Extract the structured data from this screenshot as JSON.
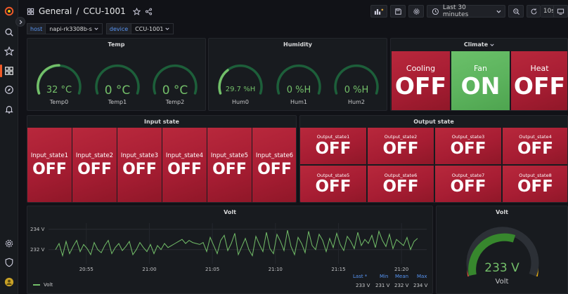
{
  "breadcrumb": {
    "folder": "General",
    "separator": "/",
    "dashboard": "CCU-1001"
  },
  "toolbar": {
    "time_range": "Last 30 minutes",
    "refresh_interval": "10s"
  },
  "variables": [
    {
      "label": "host",
      "value": "napi-rk3308b-s"
    },
    {
      "label": "device",
      "value": "CCU-1001"
    }
  ],
  "temp_panel": {
    "title": "Temp",
    "gauges": [
      {
        "value": "32 °C",
        "label": "Temp0"
      },
      {
        "value": "0 °C",
        "label": "Temp1"
      },
      {
        "value": "0 °C",
        "label": "Temp2"
      }
    ]
  },
  "humidity_panel": {
    "title": "Humidity",
    "gauges": [
      {
        "value": "29.7 %H",
        "label": "Hum0"
      },
      {
        "value": "0 %H",
        "label": "Hum1"
      },
      {
        "value": "0 %H",
        "label": "Hum2"
      }
    ]
  },
  "climate_panel": {
    "title": "Climate",
    "tiles": [
      {
        "label": "Cooling",
        "value": "OFF",
        "state": "off"
      },
      {
        "label": "Fan",
        "value": "ON",
        "state": "on"
      },
      {
        "label": "Heat",
        "value": "OFF",
        "state": "off"
      }
    ]
  },
  "input_panel": {
    "title": "Input state",
    "tiles": [
      {
        "label": "Input_state1",
        "value": "OFF"
      },
      {
        "label": "Input_state2",
        "value": "OFF"
      },
      {
        "label": "Input_state3",
        "value": "OFF"
      },
      {
        "label": "Input_state4",
        "value": "OFF"
      },
      {
        "label": "Input_state5",
        "value": "OFF"
      },
      {
        "label": "Input_state6",
        "value": "OFF"
      }
    ]
  },
  "output_panel": {
    "title": "Output state",
    "tiles": [
      {
        "label": "Output_state1",
        "value": "OFF"
      },
      {
        "label": "Output_state2",
        "value": "OFF"
      },
      {
        "label": "Output_state3",
        "value": "OFF"
      },
      {
        "label": "Output_state4",
        "value": "OFF"
      },
      {
        "label": "Output_state5",
        "value": "OFF"
      },
      {
        "label": "Output_state6",
        "value": "OFF"
      },
      {
        "label": "Output_state7",
        "value": "OFF"
      },
      {
        "label": "Output_state8",
        "value": "OFF"
      }
    ]
  },
  "volt_chart": {
    "title": "Volt",
    "y_ticks": [
      "234 V",
      "232 V"
    ],
    "x_ticks": [
      "20:55",
      "21:00",
      "21:05",
      "21:10",
      "21:15",
      "21:20"
    ],
    "legend": {
      "series": "Volt",
      "headers": [
        "Last *",
        "Min",
        "Mean",
        "Max"
      ],
      "values": [
        "233 V",
        "231 V",
        "232 V",
        "234 V"
      ]
    }
  },
  "volt_gauge": {
    "title": "Volt",
    "value": "233 V",
    "label": "Volt"
  },
  "chart_data": {
    "type": "line",
    "series": [
      {
        "name": "Volt",
        "values": [
          232.0,
          232.6,
          231.4,
          232.8,
          231.6,
          232.3,
          232.9,
          231.8,
          232.5,
          232.1,
          231.5,
          232.7,
          232.0,
          231.7,
          232.4,
          232.9,
          231.6,
          232.2,
          232.6,
          231.9,
          232.3,
          232.8,
          231.5,
          232.0,
          232.7,
          232.2,
          231.8,
          232.5,
          231.6,
          232.4,
          232.0,
          232.6,
          232.2,
          232.4,
          232.6,
          232.8,
          233.0,
          232.6,
          232.9,
          232.7,
          232.6,
          232.5,
          232.7,
          231.8,
          233.2,
          232.4,
          231.6,
          232.9,
          233.4,
          231.9,
          232.6,
          233.6,
          231.5,
          232.3,
          233.1,
          232.0,
          231.4,
          233.3,
          232.5,
          231.8,
          233.7,
          232.1,
          231.6,
          233.5,
          232.8,
          231.9,
          233.9,
          232.3,
          231.5,
          233.2,
          232.6,
          231.7,
          233.8,
          232.4,
          232.0,
          233.5,
          232.9,
          231.8,
          233.1,
          232.2,
          233.6,
          232.5,
          231.9,
          233.3,
          232.8,
          232.1,
          233.7,
          232.4,
          233.0,
          232.6,
          233.4,
          232.2,
          233.8,
          232.9,
          232.3,
          233.5,
          232.1,
          233.0,
          232.7,
          232.4,
          233.2,
          232.0,
          232.8,
          233.1
        ]
      }
    ],
    "x_range": [
      "20:52",
      "21:22"
    ],
    "ylabel": "",
    "legend": "bottom-left"
  }
}
